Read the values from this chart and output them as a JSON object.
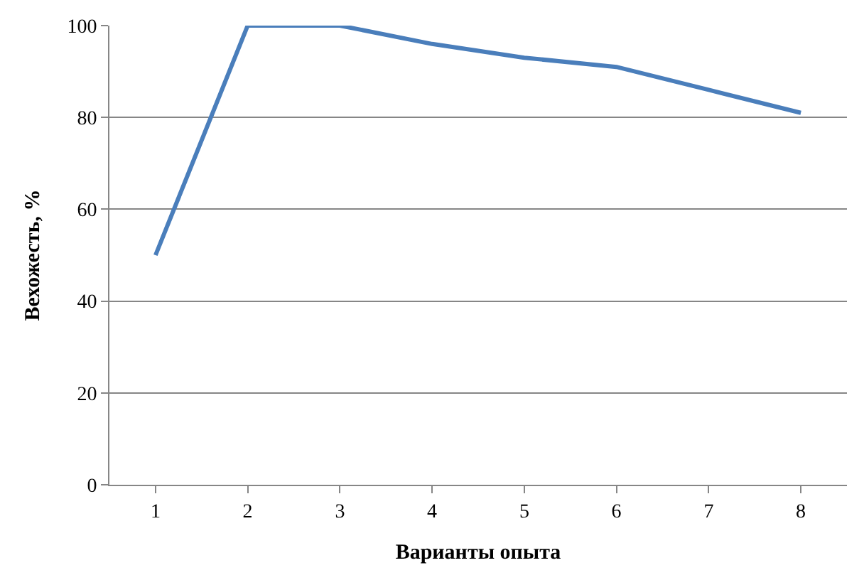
{
  "chart_data": {
    "type": "line",
    "xlabel": "Варианты опыта",
    "ylabel": "Вехожесть, %",
    "categories": [
      "1",
      "2",
      "3",
      "4",
      "5",
      "6",
      "7",
      "8"
    ],
    "series": [
      {
        "color": "#4a7ebb",
        "values": [
          50,
          100,
          100,
          96,
          93,
          91,
          86,
          81
        ]
      }
    ],
    "ylim": [
      0,
      100
    ],
    "yticks": [
      0,
      20,
      40,
      60,
      80,
      100
    ],
    "grid": "y",
    "marker": "none",
    "line_style": "solid"
  }
}
